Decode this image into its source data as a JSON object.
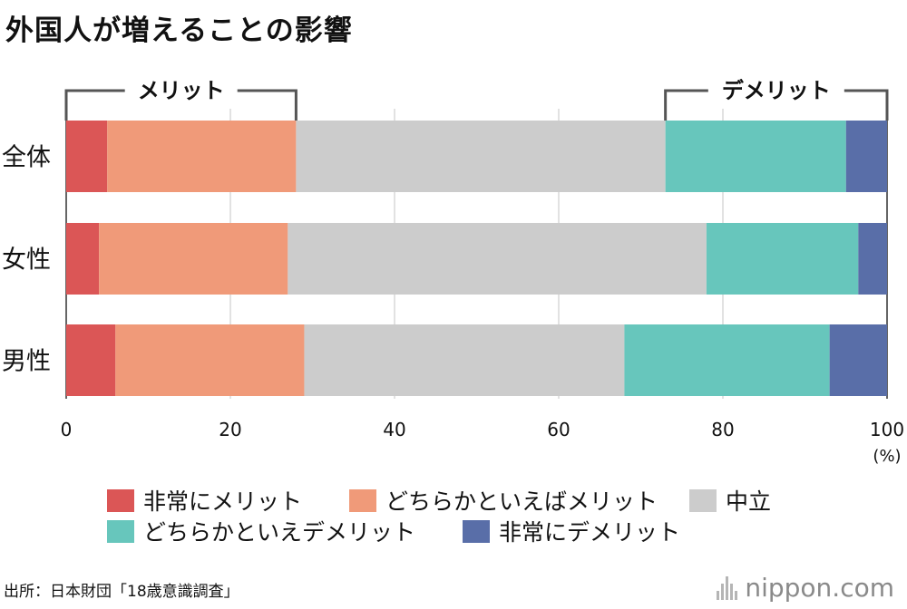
{
  "title": "外国人が増えることの影響",
  "chart_data": {
    "type": "bar",
    "orientation": "horizontal",
    "stacked": true,
    "categories": [
      "全体",
      "女性",
      "男性"
    ],
    "series": [
      {
        "name": "非常にメリット",
        "color": "#db5656",
        "values": [
          5.0,
          4.0,
          6.0
        ]
      },
      {
        "name": "どちらかといえばメリット",
        "color": "#f09a79",
        "values": [
          23.0,
          23.0,
          23.0
        ]
      },
      {
        "name": "中立",
        "color": "#cccccc",
        "values": [
          45.0,
          51.0,
          39.0
        ]
      },
      {
        "name": "どちらかといえデメリット",
        "color": "#67c6bc",
        "values": [
          22.0,
          18.5,
          25.0
        ]
      },
      {
        "name": "非常にデメリット",
        "color": "#596ea8",
        "values": [
          5.0,
          3.5,
          7.0
        ]
      }
    ],
    "xlim": [
      0,
      100
    ],
    "xticks": [
      "0",
      "20",
      "40",
      "60",
      "80",
      "100"
    ],
    "xunit": "(%)",
    "grid": true,
    "annotations": [
      {
        "label": "メリット",
        "from": 0,
        "to": 28
      },
      {
        "label": "デメリット",
        "from": 73,
        "to": 100
      }
    ]
  },
  "source": "出所：日本財団「18歳意識調査」",
  "brand": "nippon.com"
}
